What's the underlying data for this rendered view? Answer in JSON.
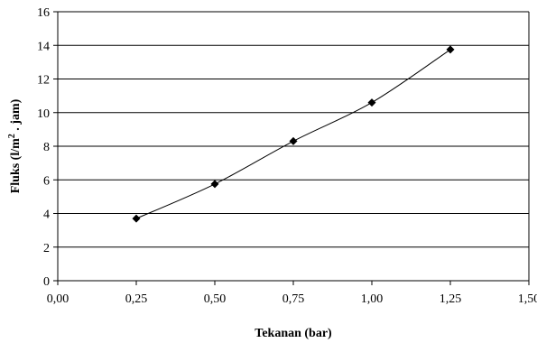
{
  "chart_data": {
    "type": "line",
    "x": [
      0.25,
      0.5,
      0.75,
      1.0,
      1.25
    ],
    "series": [
      {
        "values": [
          3.7,
          5.75,
          8.3,
          10.6,
          13.75
        ]
      }
    ],
    "xlabel": "Tekanan (bar)",
    "ylabel_prefix": "Fluks (l/m",
    "ylabel_superscript": "2",
    "ylabel_suffix": " . jam)",
    "xlim": [
      0,
      1.5
    ],
    "ylim": [
      0,
      16
    ],
    "x_ticks": [
      0,
      0.25,
      0.5,
      0.75,
      1.0,
      1.25,
      1.5
    ],
    "x_tick_labels": [
      "0,00",
      "0,25",
      "0,50",
      "0,75",
      "1,00",
      "1,25",
      "1,50"
    ],
    "y_ticks": [
      0,
      2,
      4,
      6,
      8,
      10,
      12,
      14,
      16
    ],
    "y_tick_labels": [
      "0",
      "2",
      "4",
      "6",
      "8",
      "10",
      "12",
      "14",
      "16"
    ],
    "grid": "horizontal",
    "legend": "none",
    "line_color": "#000000",
    "marker": "diamond",
    "marker_color": "#000000"
  }
}
